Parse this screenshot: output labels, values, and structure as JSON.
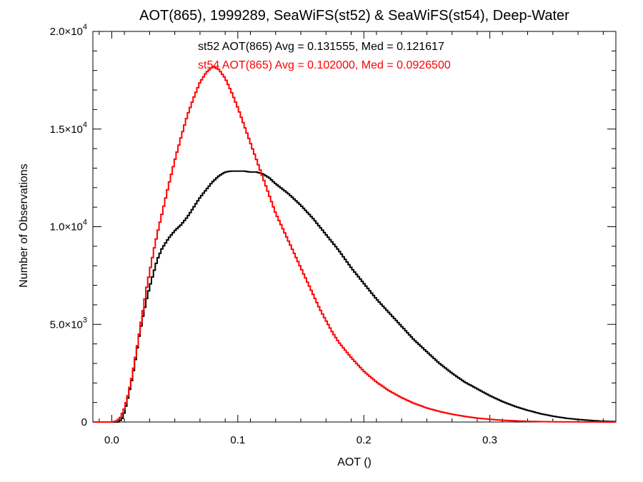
{
  "chart_data": {
    "type": "line",
    "title": "AOT(865), 1999289, SeaWiFS(st52) & SeaWiFS(st54), Deep-Water",
    "xlabel": "AOT ()",
    "ylabel": "Number of Observations",
    "xlim": [
      -0.015,
      0.4
    ],
    "ylim": [
      0,
      20000
    ],
    "grid": false,
    "x_ticks": [
      {
        "value": 0.0,
        "label": "0.0"
      },
      {
        "value": 0.1,
        "label": "0.1"
      },
      {
        "value": 0.2,
        "label": "0.2"
      },
      {
        "value": 0.3,
        "label": "0.3"
      }
    ],
    "y_ticks": [
      {
        "value": 0,
        "label": "0",
        "exp": ""
      },
      {
        "value": 5000,
        "label": "5.0×10",
        "exp": "3"
      },
      {
        "value": 10000,
        "label": "1.0×10",
        "exp": "4"
      },
      {
        "value": 15000,
        "label": "1.5×10",
        "exp": "4"
      },
      {
        "value": 20000,
        "label": "2.0×10",
        "exp": "4"
      }
    ],
    "annotations": [
      {
        "text": "st52 AOT(865) Avg = 0.131555, Med = 0.121617",
        "color": "#000000"
      },
      {
        "text": "st54 AOT(865) Avg = 0.102000, Med = 0.0926500",
        "color": "#ff0000"
      }
    ],
    "series": [
      {
        "color": "#000000",
        "points": [
          [
            -0.015,
            0
          ],
          [
            0.005,
            0
          ],
          [
            0.008,
            150
          ],
          [
            0.01,
            500
          ],
          [
            0.012,
            1000
          ],
          [
            0.014,
            1600
          ],
          [
            0.016,
            2200
          ],
          [
            0.018,
            2900
          ],
          [
            0.02,
            3700
          ],
          [
            0.022,
            4500
          ],
          [
            0.025,
            5500
          ],
          [
            0.028,
            6400
          ],
          [
            0.03,
            6900
          ],
          [
            0.033,
            7600
          ],
          [
            0.036,
            8300
          ],
          [
            0.04,
            8900
          ],
          [
            0.045,
            9400
          ],
          [
            0.05,
            9800
          ],
          [
            0.055,
            10100
          ],
          [
            0.06,
            10500
          ],
          [
            0.065,
            11000
          ],
          [
            0.07,
            11500
          ],
          [
            0.075,
            11900
          ],
          [
            0.08,
            12300
          ],
          [
            0.085,
            12600
          ],
          [
            0.09,
            12800
          ],
          [
            0.095,
            12850
          ],
          [
            0.1,
            12850
          ],
          [
            0.105,
            12850
          ],
          [
            0.11,
            12800
          ],
          [
            0.115,
            12800
          ],
          [
            0.12,
            12700
          ],
          [
            0.125,
            12500
          ],
          [
            0.13,
            12200
          ],
          [
            0.14,
            11700
          ],
          [
            0.15,
            11100
          ],
          [
            0.16,
            10400
          ],
          [
            0.17,
            9600
          ],
          [
            0.18,
            8800
          ],
          [
            0.19,
            7900
          ],
          [
            0.2,
            7100
          ],
          [
            0.21,
            6300
          ],
          [
            0.22,
            5600
          ],
          [
            0.23,
            4900
          ],
          [
            0.24,
            4200
          ],
          [
            0.25,
            3600
          ],
          [
            0.26,
            3000
          ],
          [
            0.27,
            2500
          ],
          [
            0.28,
            2050
          ],
          [
            0.29,
            1700
          ],
          [
            0.3,
            1350
          ],
          [
            0.31,
            1050
          ],
          [
            0.32,
            800
          ],
          [
            0.33,
            600
          ],
          [
            0.34,
            430
          ],
          [
            0.35,
            300
          ],
          [
            0.36,
            200
          ],
          [
            0.37,
            130
          ],
          [
            0.38,
            80
          ],
          [
            0.39,
            40
          ],
          [
            0.4,
            20
          ]
        ]
      },
      {
        "color": "#ff0000",
        "points": [
          [
            -0.015,
            0
          ],
          [
            0.0,
            0
          ],
          [
            0.004,
            60
          ],
          [
            0.007,
            250
          ],
          [
            0.01,
            700
          ],
          [
            0.013,
            1400
          ],
          [
            0.016,
            2300
          ],
          [
            0.019,
            3400
          ],
          [
            0.022,
            4600
          ],
          [
            0.025,
            5800
          ],
          [
            0.028,
            7000
          ],
          [
            0.031,
            8000
          ],
          [
            0.034,
            9000
          ],
          [
            0.037,
            9900
          ],
          [
            0.04,
            10700
          ],
          [
            0.045,
            12100
          ],
          [
            0.05,
            13400
          ],
          [
            0.055,
            14600
          ],
          [
            0.06,
            15700
          ],
          [
            0.065,
            16600
          ],
          [
            0.07,
            17400
          ],
          [
            0.075,
            17900
          ],
          [
            0.08,
            18200
          ],
          [
            0.085,
            18050
          ],
          [
            0.09,
            17600
          ],
          [
            0.095,
            16900
          ],
          [
            0.1,
            16100
          ],
          [
            0.105,
            15200
          ],
          [
            0.11,
            14300
          ],
          [
            0.115,
            13400
          ],
          [
            0.12,
            12500
          ],
          [
            0.125,
            11600
          ],
          [
            0.13,
            10700
          ],
          [
            0.135,
            10000
          ],
          [
            0.14,
            9300
          ],
          [
            0.145,
            8600
          ],
          [
            0.15,
            7900
          ],
          [
            0.155,
            7200
          ],
          [
            0.16,
            6500
          ],
          [
            0.165,
            5800
          ],
          [
            0.17,
            5200
          ],
          [
            0.175,
            4600
          ],
          [
            0.18,
            4100
          ],
          [
            0.185,
            3700
          ],
          [
            0.19,
            3300
          ],
          [
            0.195,
            2950
          ],
          [
            0.2,
            2600
          ],
          [
            0.21,
            2050
          ],
          [
            0.22,
            1600
          ],
          [
            0.23,
            1250
          ],
          [
            0.24,
            950
          ],
          [
            0.25,
            720
          ],
          [
            0.26,
            540
          ],
          [
            0.27,
            400
          ],
          [
            0.28,
            290
          ],
          [
            0.29,
            200
          ],
          [
            0.3,
            140
          ],
          [
            0.31,
            90
          ],
          [
            0.32,
            60
          ],
          [
            0.33,
            35
          ],
          [
            0.34,
            20
          ],
          [
            0.36,
            8
          ],
          [
            0.38,
            3
          ],
          [
            0.4,
            0
          ]
        ]
      }
    ]
  }
}
